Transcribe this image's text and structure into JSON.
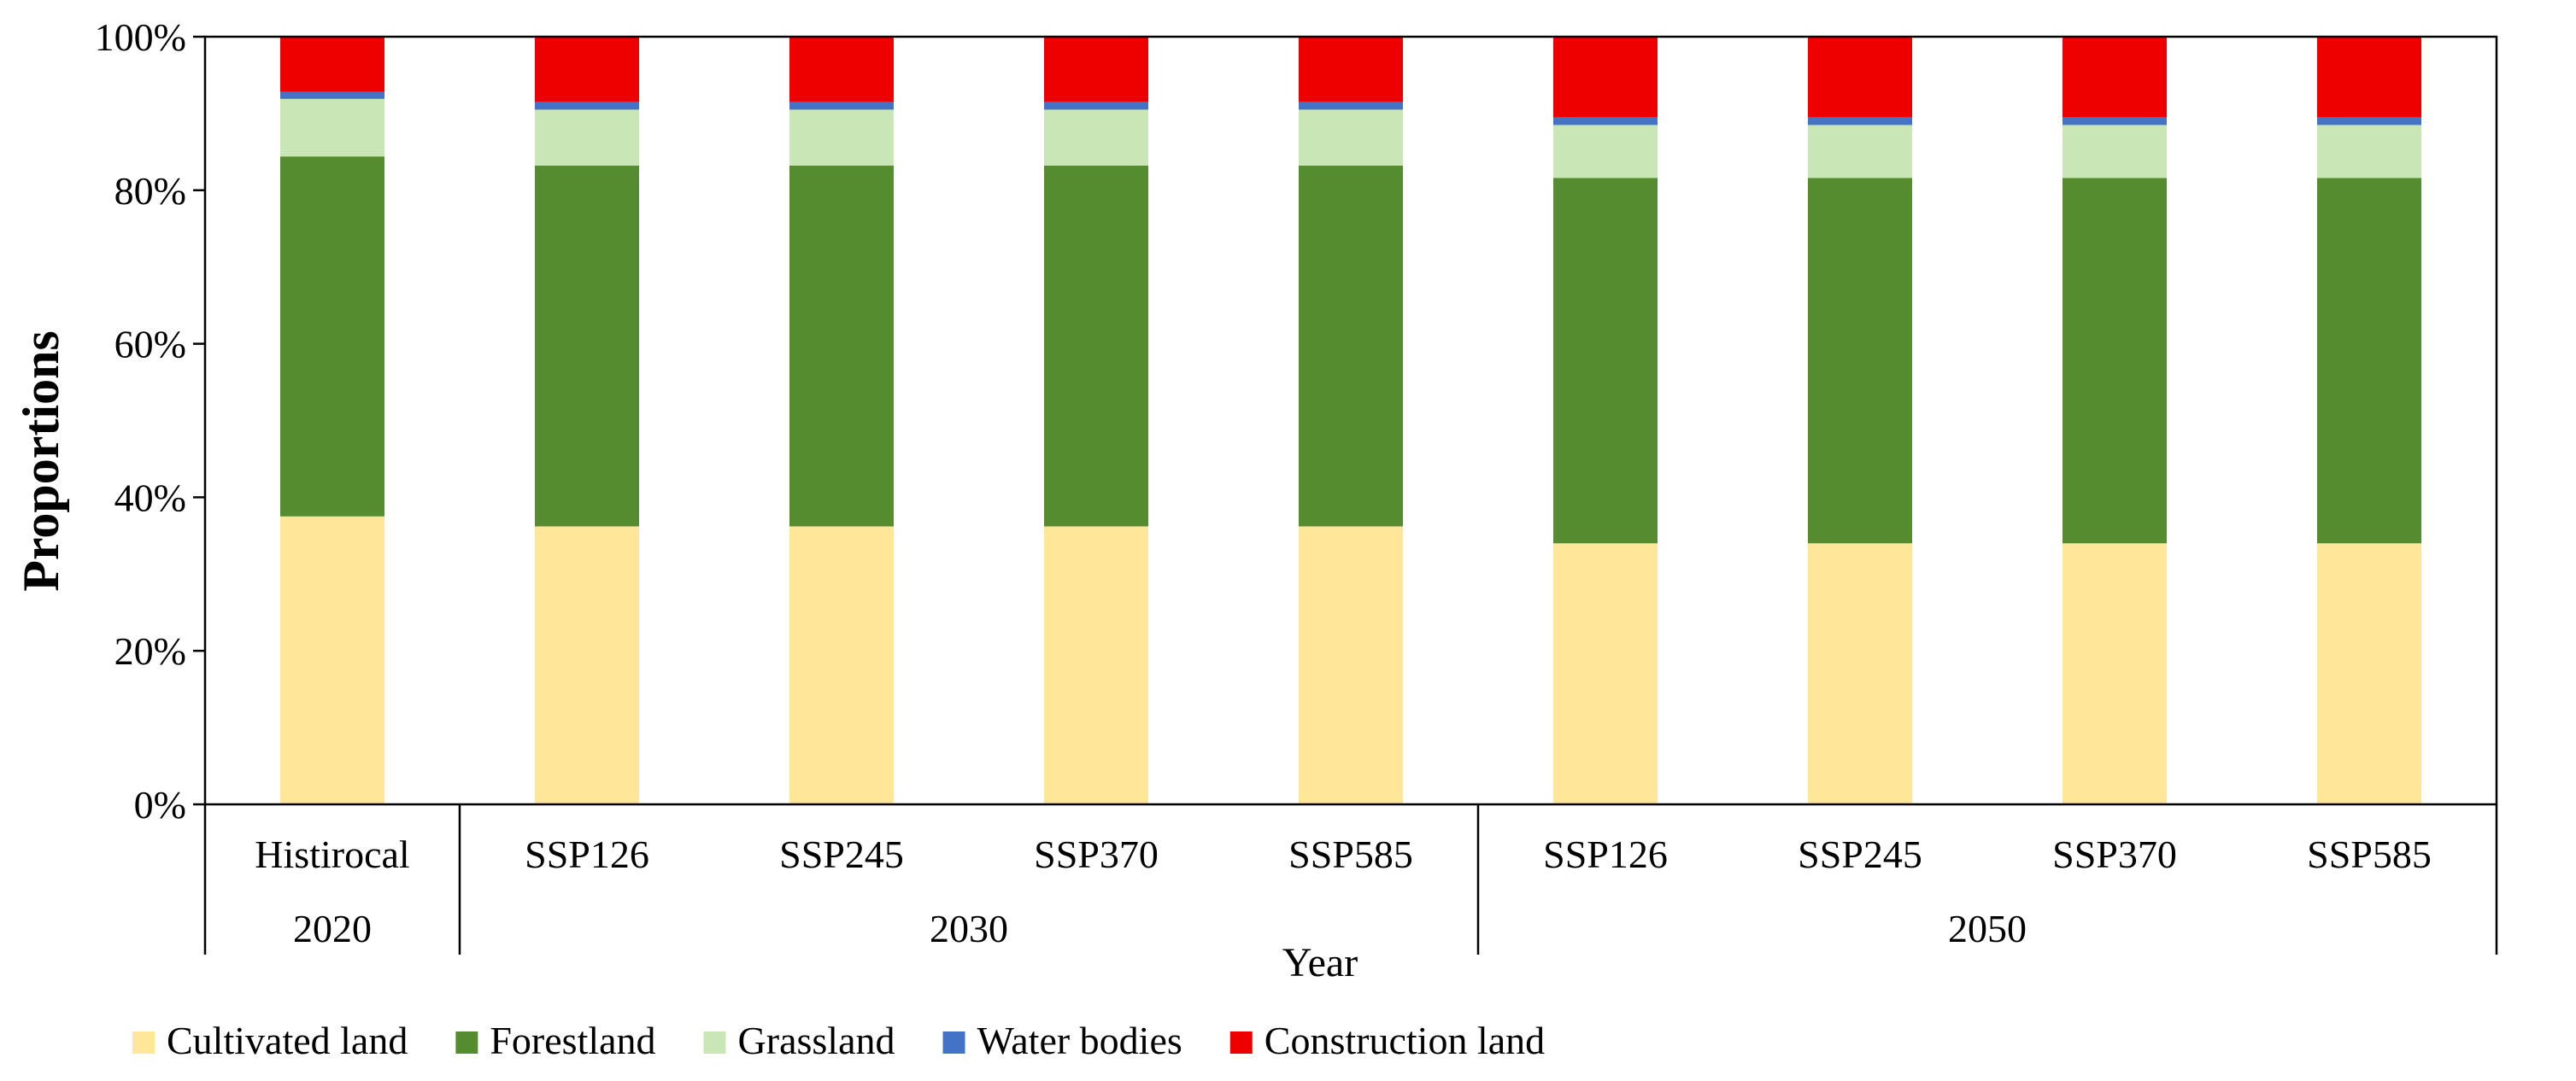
{
  "chart_data": {
    "type": "bar",
    "stacked": true,
    "percent_stacked": true,
    "categories": [
      "Histirocal",
      "SSP126",
      "SSP245",
      "SSP370",
      "SSP585",
      "SSP126",
      "SSP245",
      "SSP370",
      "SSP585"
    ],
    "groups": [
      {
        "label": "2020",
        "categories": [
          "Histirocal"
        ]
      },
      {
        "label": "2030",
        "categories": [
          "SSP126",
          "SSP245",
          "SSP370",
          "SSP585"
        ]
      },
      {
        "label": "2050",
        "categories": [
          "SSP126",
          "SSP245",
          "SSP370",
          "SSP585"
        ]
      }
    ],
    "series": [
      {
        "name": "Cultivated land",
        "color": "#FFE699",
        "values": [
          37.5,
          36.2,
          36.2,
          36.2,
          36.2,
          34.0,
          34.0,
          34.0,
          34.0
        ]
      },
      {
        "name": "Forestland",
        "color": "#548C2F",
        "values": [
          46.9,
          47.0,
          47.0,
          47.0,
          47.0,
          47.6,
          47.6,
          47.6,
          47.6
        ]
      },
      {
        "name": "Grassland",
        "color": "#C9E6B6",
        "values": [
          7.5,
          7.3,
          7.3,
          7.3,
          7.3,
          6.9,
          6.9,
          6.9,
          6.9
        ]
      },
      {
        "name": "Water bodies",
        "color": "#4472C4",
        "values": [
          0.9,
          1.0,
          1.0,
          1.0,
          1.0,
          1.0,
          1.0,
          1.0,
          1.0
        ]
      },
      {
        "name": "Construction land",
        "color": "#EE0000",
        "values": [
          7.2,
          8.5,
          8.5,
          8.5,
          8.5,
          10.5,
          10.5,
          10.5,
          10.5
        ]
      }
    ],
    "ylabel": "Proportions",
    "xlabel": "Year",
    "ylim": [
      0,
      100
    ],
    "yticks": [
      "0%",
      "20%",
      "40%",
      "60%",
      "80%",
      "100%"
    ],
    "legend_position": "bottom",
    "grid": false
  }
}
